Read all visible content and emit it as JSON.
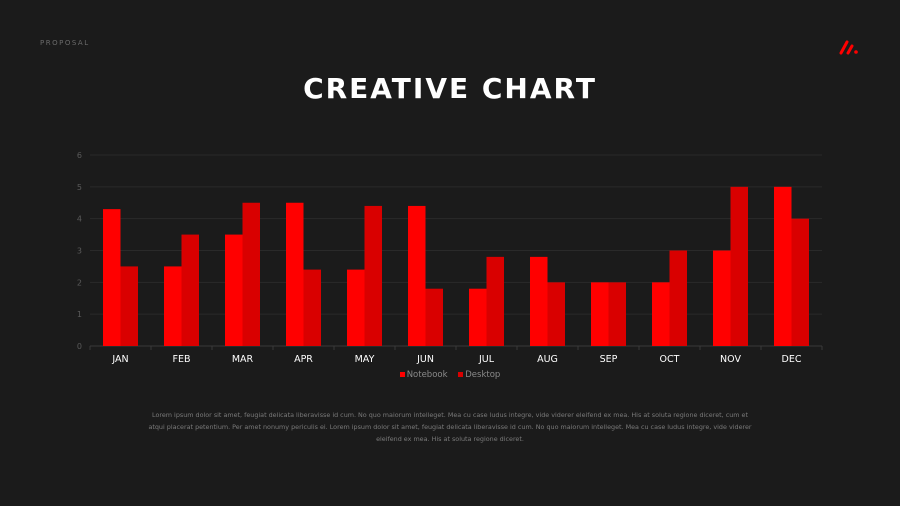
{
  "header": {
    "label": "PROPOSAL",
    "logo": "brand-slash-logo"
  },
  "title": "CREATIVE CHART",
  "colors": {
    "background": "#1b1b1b",
    "notebook": "#ff0000",
    "desktop": "#d90000",
    "grid": "#2a2a2a",
    "axis_text": "#5a5a5a"
  },
  "chart_data": {
    "type": "bar",
    "title": "CREATIVE CHART",
    "xlabel": "",
    "ylabel": "",
    "categories": [
      "JAN",
      "FEB",
      "MAR",
      "APR",
      "MAY",
      "JUN",
      "JUL",
      "AUG",
      "SEP",
      "OCT",
      "NOV",
      "DEC"
    ],
    "series": [
      {
        "name": "Notebook",
        "color": "#ff0000",
        "values": [
          4.3,
          2.5,
          3.5,
          4.5,
          2.4,
          4.4,
          1.8,
          2.8,
          2.0,
          2.0,
          3.0,
          5.0
        ]
      },
      {
        "name": "Desktop",
        "color": "#d90000",
        "values": [
          2.5,
          3.5,
          4.5,
          2.4,
          4.4,
          1.8,
          2.8,
          2.0,
          2.0,
          3.0,
          5.0,
          4.0
        ]
      }
    ],
    "ylim": [
      0,
      6
    ],
    "yticks": [
      "0",
      "1",
      "2",
      "3",
      "4",
      "5",
      "6"
    ],
    "grid": true,
    "legend": "bottom-center"
  },
  "body_text": "Lorem ipsum dolor sit amet, feugiat delicata liberavisse id cum. No quo maiorum intelleget. Mea cu case ludus integre, vide viderer eleifend ex mea. His at soluta regione diceret, cum et atqui placerat petentium. Per amet nonumy periculis ei. Lorem ipsum dolor sit amet, feugiat delicata liberavisse id cum. No quo maiorum intelleget. Mea cu case ludus integre, vide viderer eleifend ex mea. His at soluta regione diceret."
}
